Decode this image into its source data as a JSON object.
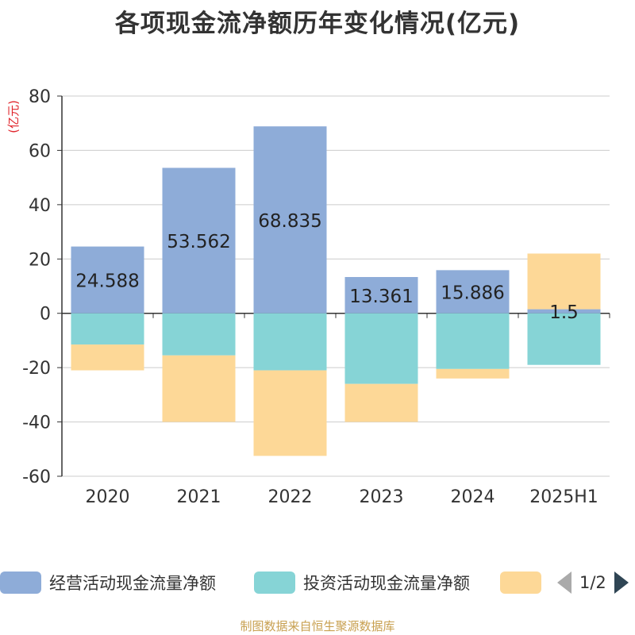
{
  "title": "各项现金流净额历年变化情况(亿元)",
  "source": "制图数据来自恒生聚源数据库",
  "legend": {
    "items": [
      {
        "label": "经营活动现金流量净额",
        "color": "#8eacd8"
      },
      {
        "label": "投资活动现金流量净额",
        "color": "#86d4d6"
      },
      {
        "label": "",
        "color": "#fdd897"
      }
    ],
    "page": "1/2"
  },
  "chart_data": {
    "type": "bar",
    "stacked": true,
    "categories": [
      "2020",
      "2021",
      "2022",
      "2023",
      "2024",
      "2025H1"
    ],
    "ylabel": "(亿元)",
    "ylim": [
      -60,
      80
    ],
    "yticks": [
      80,
      60,
      40,
      20,
      0,
      -20,
      -40,
      -60
    ],
    "grid": true,
    "legend_position": "bottom",
    "series": [
      {
        "name": "经营活动现金流量净额",
        "color": "#8eacd8",
        "values": [
          24.588,
          53.562,
          68.835,
          13.361,
          15.886,
          1.5
        ],
        "labels": [
          "24.588",
          "53.562",
          "68.835",
          "13.361",
          "15.886",
          "1.5"
        ]
      },
      {
        "name": "投资活动现金流量净额",
        "color": "#86d4d6",
        "values": [
          -11.5,
          -15.5,
          -21.0,
          -26.0,
          -20.5,
          -19.0
        ]
      },
      {
        "color": "#fdd897",
        "values": [
          -9.5,
          -24.5,
          -31.5,
          -14.0,
          -3.5,
          20.5
        ]
      }
    ]
  }
}
